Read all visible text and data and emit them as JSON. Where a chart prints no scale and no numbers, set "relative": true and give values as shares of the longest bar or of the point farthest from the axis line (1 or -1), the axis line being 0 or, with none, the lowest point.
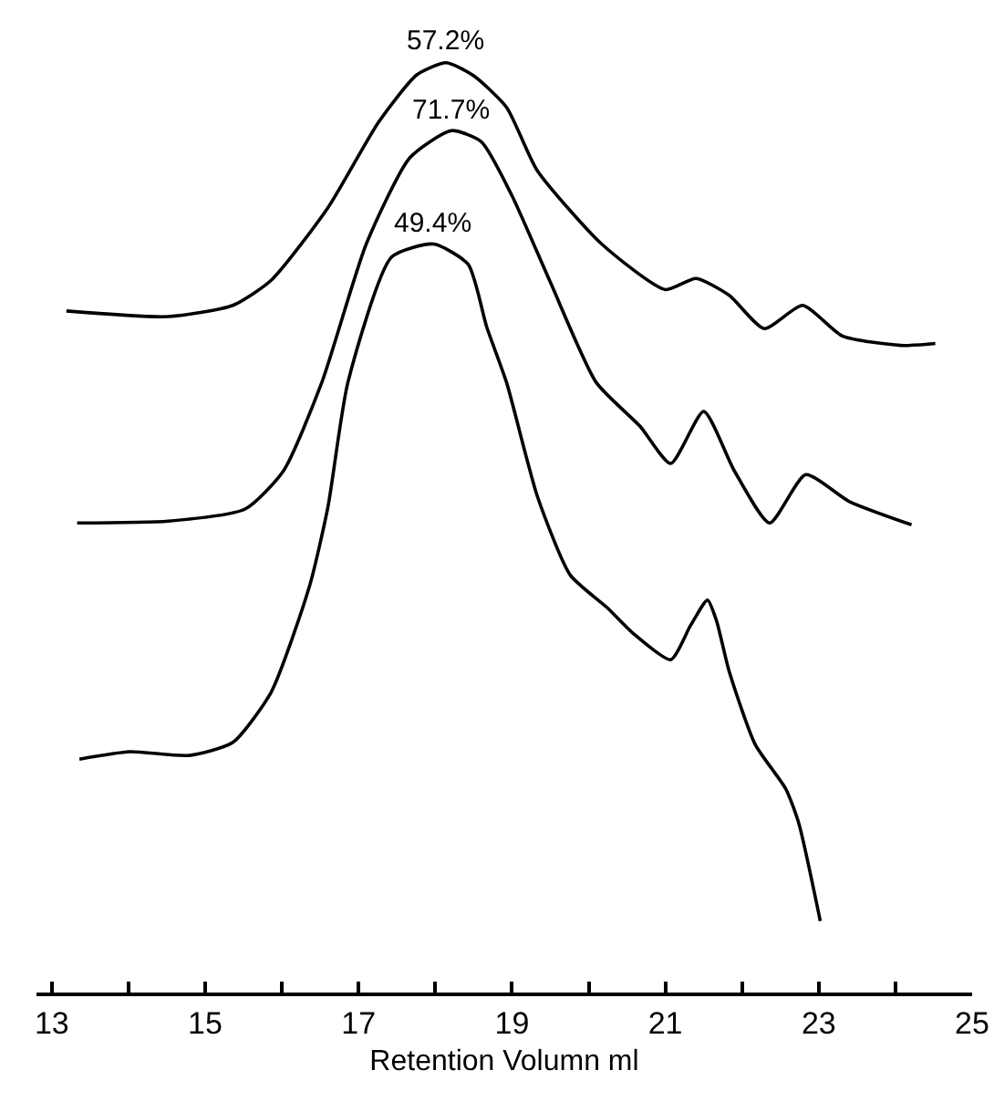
{
  "chart_data": {
    "type": "line",
    "relative": true,
    "xlabel": "Retention Volumn ml",
    "xlim": [
      12.8,
      25
    ],
    "xticks": [
      13,
      {
        "value": 14,
        "label": null
      },
      15,
      {
        "value": 16,
        "label": null
      },
      17,
      {
        "value": 18,
        "label": null
      },
      19,
      {
        "value": 20,
        "label": null
      },
      21,
      {
        "value": 22,
        "label": null
      },
      23,
      {
        "value": 24,
        "label": null
      },
      25
    ],
    "tick_labels": "x",
    "grid": false,
    "marker": "none",
    "line_style": "solid",
    "series": [
      {
        "color": "#000000",
        "x": [
          13.19,
          14.52,
          15.36,
          15.86,
          16.6,
          17.26,
          17.76,
          18.14,
          18.5,
          18.93,
          19.33,
          20.17,
          21.0,
          21.4,
          21.83,
          22.29,
          22.79,
          23.31,
          24.07,
          24.52
        ],
        "values": [
          0.733,
          0.727,
          0.739,
          0.766,
          0.844,
          0.936,
          0.987,
          1.0,
          0.986,
          0.952,
          0.884,
          0.805,
          0.756,
          0.768,
          0.75,
          0.714,
          0.739,
          0.706,
          0.696,
          0.698
        ]
      },
      {
        "color": "#000000",
        "x": [
          13.33,
          14.52,
          15.52,
          16.02,
          16.52,
          17.1,
          17.67,
          18.21,
          18.6,
          19.0,
          19.5,
          20.1,
          20.67,
          21.07,
          21.5,
          21.9,
          22.36,
          22.83,
          23.4,
          24.21
        ],
        "values": [
          0.505,
          0.507,
          0.52,
          0.561,
          0.656,
          0.805,
          0.898,
          0.927,
          0.915,
          0.857,
          0.764,
          0.656,
          0.609,
          0.569,
          0.625,
          0.561,
          0.505,
          0.557,
          0.528,
          0.503
        ]
      },
      {
        "color": "#000000",
        "x": [
          13.36,
          14.02,
          14.79,
          15.36,
          15.86,
          16.36,
          16.6,
          16.86,
          17.43,
          17.98,
          18.43,
          18.67,
          18.93,
          19.33,
          19.76,
          20.24,
          20.57,
          21.07,
          21.33,
          21.55,
          21.67,
          21.83,
          22.17,
          22.57,
          22.74,
          23.02
        ],
        "values": [
          0.251,
          0.259,
          0.255,
          0.269,
          0.323,
          0.437,
          0.522,
          0.656,
          0.791,
          0.805,
          0.783,
          0.716,
          0.656,
          0.534,
          0.449,
          0.414,
          0.387,
          0.358,
          0.395,
          0.422,
          0.399,
          0.346,
          0.267,
          0.219,
          0.182,
          0.077
        ]
      }
    ],
    "annotations": [
      {
        "text": "57.2%",
        "x": 18.14,
        "y": 1.0
      },
      {
        "text": "71.7%",
        "x": 18.21,
        "y": 0.927
      },
      {
        "text": "49.4%",
        "x": 17.98,
        "y": 0.805
      }
    ]
  }
}
